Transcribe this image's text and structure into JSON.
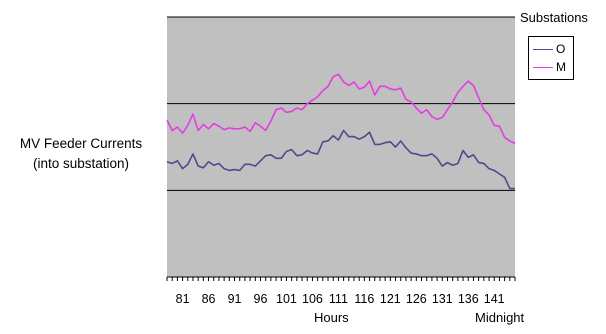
{
  "chart_data": {
    "type": "line",
    "title": "",
    "ylabel_lines": [
      "MV Feeder Currents",
      "(into substation)"
    ],
    "xlabel": "Hours",
    "annotation": "Midnight",
    "legend_title": "Substations",
    "legend_position": "top-right",
    "grid": "horizontal",
    "plot_background": "#c0c0c0",
    "xlim": [
      78,
      145
    ],
    "ylim": [
      0,
      3
    ],
    "x_tick_labels": [
      "81",
      "86",
      "91",
      "96",
      "101",
      "106",
      "111",
      "116",
      "121",
      "126",
      "131",
      "136",
      "141"
    ],
    "x_tick_values": [
      81,
      86,
      91,
      96,
      101,
      106,
      111,
      116,
      121,
      126,
      131,
      136,
      141
    ],
    "x": [
      78,
      79,
      80,
      81,
      82,
      83,
      84,
      85,
      86,
      87,
      88,
      89,
      90,
      91,
      92,
      93,
      94,
      95,
      96,
      97,
      98,
      99,
      100,
      101,
      102,
      103,
      104,
      105,
      106,
      107,
      108,
      109,
      110,
      111,
      112,
      113,
      114,
      115,
      116,
      117,
      118,
      119,
      120,
      121,
      122,
      123,
      124,
      125,
      126,
      127,
      128,
      129,
      130,
      131,
      132,
      133,
      134,
      135,
      136,
      137,
      138,
      139,
      140,
      141,
      142,
      143,
      144,
      145
    ],
    "series": [
      {
        "name": "O",
        "color": "#4b4b8f",
        "values": [
          1.33,
          1.31,
          1.34,
          1.25,
          1.3,
          1.42,
          1.28,
          1.26,
          1.33,
          1.29,
          1.31,
          1.25,
          1.23,
          1.24,
          1.23,
          1.3,
          1.3,
          1.28,
          1.34,
          1.4,
          1.41,
          1.37,
          1.37,
          1.45,
          1.47,
          1.4,
          1.41,
          1.46,
          1.43,
          1.42,
          1.56,
          1.57,
          1.63,
          1.58,
          1.69,
          1.62,
          1.62,
          1.59,
          1.62,
          1.67,
          1.53,
          1.53,
          1.55,
          1.56,
          1.5,
          1.57,
          1.49,
          1.43,
          1.42,
          1.4,
          1.4,
          1.42,
          1.37,
          1.28,
          1.32,
          1.29,
          1.31,
          1.46,
          1.38,
          1.41,
          1.32,
          1.31,
          1.25,
          1.23,
          1.19,
          1.15,
          1.02,
          1.02
        ]
      },
      {
        "name": "M",
        "color": "#e63ce6",
        "values": [
          1.81,
          1.69,
          1.73,
          1.66,
          1.75,
          1.88,
          1.69,
          1.76,
          1.71,
          1.77,
          1.74,
          1.7,
          1.72,
          1.71,
          1.71,
          1.73,
          1.68,
          1.78,
          1.74,
          1.69,
          1.8,
          1.93,
          1.95,
          1.9,
          1.91,
          1.95,
          1.93,
          2.0,
          2.04,
          2.08,
          2.15,
          2.2,
          2.31,
          2.34,
          2.25,
          2.21,
          2.25,
          2.17,
          2.19,
          2.26,
          2.1,
          2.2,
          2.2,
          2.17,
          2.16,
          2.18,
          2.05,
          2.02,
          1.95,
          1.89,
          1.93,
          1.85,
          1.82,
          1.84,
          1.93,
          2.02,
          2.13,
          2.2,
          2.26,
          2.21,
          2.07,
          1.93,
          1.87,
          1.75,
          1.74,
          1.61,
          1.57,
          1.54
        ]
      }
    ]
  }
}
